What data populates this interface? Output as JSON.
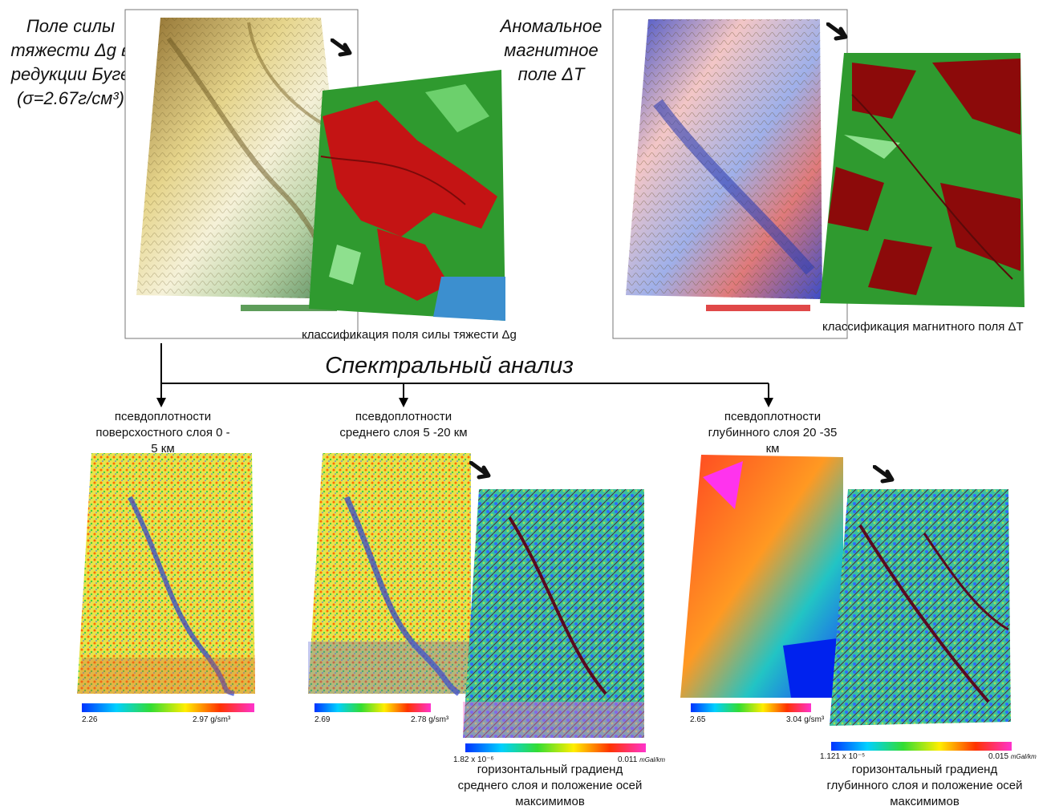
{
  "gravity": {
    "title": "Поле силы тяжести Δg в редукции Буге (σ=2.67г/см³)",
    "classification_caption": "классификация поля силы тяжести Δg"
  },
  "magnetic": {
    "title": "Аномальное магнитное поле ΔT",
    "classification_caption": "классификация магнитного поля ΔT"
  },
  "spectral": {
    "title": "Спектральный анализ"
  },
  "layers": [
    {
      "caption": "псевдоплотности поверсхостного слоя 0 - 5 км",
      "scale_min": "2.26",
      "scale_max": "2.97 g/sm³"
    },
    {
      "caption": "псевдоплотности среднего слоя 5 -20 км",
      "scale_min": "2.69",
      "scale_max": "2.78 g/sm³",
      "gradient": {
        "scale_min": "1.82 x 10⁻⁶",
        "scale_max": "0.011",
        "unit": "mGal/km",
        "caption": "горизонтальный градиенд среднего слоя и положение осей максимимов"
      }
    },
    {
      "caption": "псевдоплотности глубинного слоя 20 -35 км",
      "scale_min": "2.65",
      "scale_max": "3.04 g/sm³",
      "gradient": {
        "scale_min": "1.121 x 10⁻⁵",
        "scale_max": "0.015",
        "unit": "mGal/km",
        "caption": "горизонтальный градиенд глубинного слоя и положение осей максимимов"
      }
    }
  ],
  "colors": {
    "gravity_map": "#cdbb6a",
    "class_red": "#c41414",
    "class_green": "#2f9a2f",
    "mag_blue": "#4a5bd0",
    "mag_red": "#e99a9a",
    "arrow": "#111111",
    "flow": "#000000"
  },
  "icons": {
    "arrow": "arrow-icon"
  }
}
